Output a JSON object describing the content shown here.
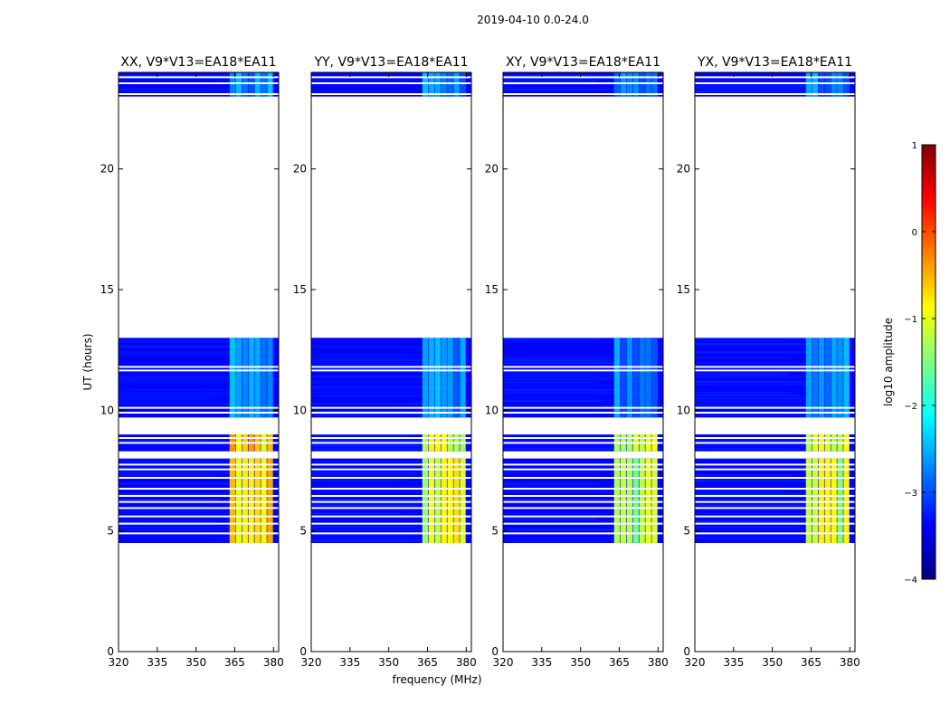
{
  "suptitle": "2019-04-10 0.0-24.0",
  "colormap": [
    "#00007f",
    "#0000ff",
    "#007fff",
    "#00ffff",
    "#7fff7f",
    "#ffff00",
    "#ff7f00",
    "#ff0000",
    "#7f0000"
  ],
  "chart_data": {
    "type": "heatmap",
    "xlabel": "frequency (MHz)",
    "ylabel": "UT (hours)",
    "xlim": [
      320,
      382
    ],
    "ylim": [
      0,
      24
    ],
    "xticks": [
      "320",
      "335",
      "350",
      "365",
      "380"
    ],
    "yticks": [
      "0",
      "5",
      "10",
      "15",
      "20"
    ],
    "xtick_values": [
      320,
      335,
      350,
      365,
      380
    ],
    "ytick_values": [
      0,
      5,
      10,
      15,
      20
    ],
    "panels": [
      {
        "title": "XX, V9*V13=EA18*EA11",
        "bright_level": 0.68
      },
      {
        "title": "YY, V9*V13=EA18*EA11",
        "bright_level": 0.6
      },
      {
        "title": "XY, V9*V13=EA18*EA11",
        "bright_level": 0.56
      },
      {
        "title": "YX, V9*V13=EA18*EA11",
        "bright_level": 0.58
      }
    ],
    "data_blocks_hours": [
      [
        4.5,
        8.0
      ],
      [
        8.3,
        9.0
      ],
      [
        9.7,
        13.0
      ],
      [
        23.0,
        24.0
      ]
    ],
    "flagged_lines_hours": [
      4.9,
      5.3,
      5.6,
      5.95,
      6.2,
      6.45,
      6.75,
      7.2,
      7.55,
      7.75,
      8.65,
      8.85,
      9.9,
      10.1,
      11.65,
      11.8,
      23.1,
      23.55,
      23.8
    ],
    "rfi_band_mhz": [
      363,
      380
    ],
    "colorbar": {
      "label": "log10 amplitude",
      "range": [
        -4,
        1
      ],
      "ticks": [
        "1",
        "0",
        "−1",
        "−2",
        "−3",
        "−4"
      ],
      "tick_values": [
        1,
        0,
        -1,
        -2,
        -3,
        -4
      ]
    }
  }
}
